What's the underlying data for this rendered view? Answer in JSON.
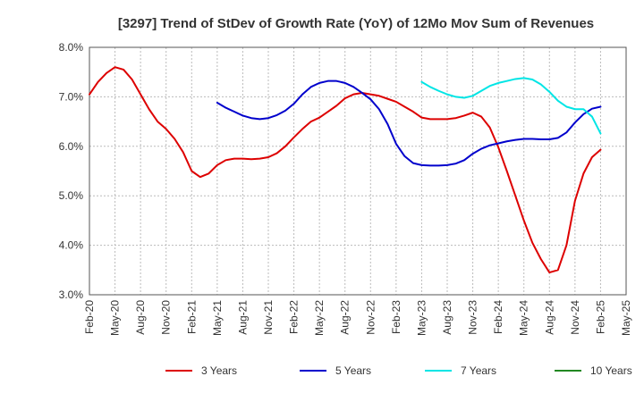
{
  "chart_data": {
    "type": "line",
    "title": "[3297]  Trend of StDev of Growth Rate (YoY) of 12Mo Mov Sum of Revenues",
    "xlabel": "",
    "ylabel": "",
    "ylim": [
      3.0,
      8.0
    ],
    "yticks": [
      "8.0%",
      "7.0%",
      "6.0%",
      "5.0%",
      "4.0%",
      "3.0%"
    ],
    "ytick_values": [
      8.0,
      7.0,
      6.0,
      5.0,
      4.0,
      3.0
    ],
    "xticks": [
      "Feb-20",
      "May-20",
      "Aug-20",
      "Nov-20",
      "Feb-21",
      "May-21",
      "Aug-21",
      "Nov-21",
      "Feb-22",
      "May-22",
      "Aug-22",
      "Nov-22",
      "Feb-23",
      "May-23",
      "Aug-23",
      "Nov-23",
      "Feb-24",
      "May-24",
      "Aug-24",
      "Nov-24",
      "Feb-25",
      "May-25"
    ],
    "x_start": "Feb-20",
    "x_end": "May-25",
    "grid": true,
    "legend_position": "bottom",
    "series": [
      {
        "name": "3 Years",
        "color": "#dd0000",
        "start_month_index": 0,
        "values": [
          7.05,
          7.3,
          7.48,
          7.6,
          7.55,
          7.35,
          7.05,
          6.75,
          6.5,
          6.35,
          6.15,
          5.88,
          5.5,
          5.38,
          5.45,
          5.62,
          5.72,
          5.75,
          5.75,
          5.74,
          5.75,
          5.78,
          5.86,
          6.0,
          6.18,
          6.35,
          6.5,
          6.58,
          6.7,
          6.82,
          6.97,
          7.05,
          7.08,
          7.05,
          7.02,
          6.96,
          6.9,
          6.8,
          6.7,
          6.58,
          6.55,
          6.55,
          6.55,
          6.57,
          6.62,
          6.68,
          6.6,
          6.38,
          5.98,
          5.5,
          5.0,
          4.5,
          4.05,
          3.72,
          3.45,
          3.5,
          4.0,
          4.9,
          5.45,
          5.78,
          5.93
        ]
      },
      {
        "name": "5 Years",
        "color": "#0000cc",
        "start_month_index": 15,
        "values": [
          6.88,
          6.78,
          6.7,
          6.62,
          6.57,
          6.55,
          6.57,
          6.63,
          6.72,
          6.86,
          7.05,
          7.2,
          7.28,
          7.32,
          7.32,
          7.28,
          7.2,
          7.08,
          6.95,
          6.75,
          6.45,
          6.05,
          5.8,
          5.66,
          5.62,
          5.61,
          5.61,
          5.62,
          5.65,
          5.72,
          5.85,
          5.95,
          6.02,
          6.06,
          6.1,
          6.13,
          6.15,
          6.15,
          6.14,
          6.14,
          6.17,
          6.28,
          6.48,
          6.65,
          6.76,
          6.8
        ]
      },
      {
        "name": "7 Years",
        "color": "#00e5e5",
        "start_month_index": 39,
        "values": [
          7.3,
          7.2,
          7.12,
          7.05,
          7.0,
          6.98,
          7.02,
          7.12,
          7.22,
          7.28,
          7.32,
          7.36,
          7.38,
          7.35,
          7.25,
          7.1,
          6.92,
          6.8,
          6.75,
          6.75,
          6.6,
          6.26
        ]
      },
      {
        "name": "10 Years",
        "color": "#228822",
        "start_month_index": 0,
        "values": []
      }
    ]
  }
}
